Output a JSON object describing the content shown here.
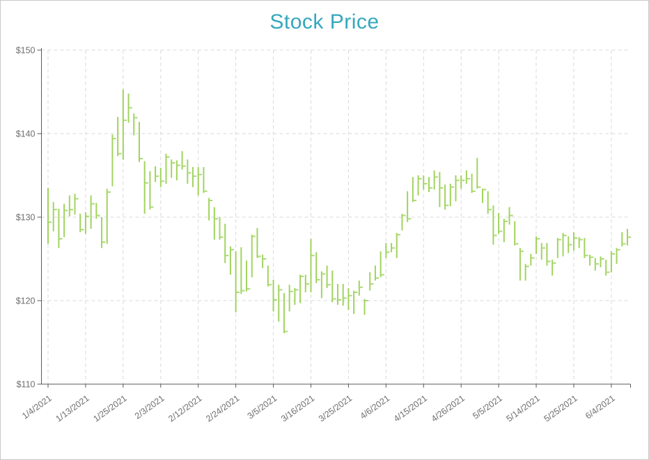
{
  "window": {
    "title": "Stock Price"
  },
  "chart_data": {
    "type": "hlc-bar",
    "title": "Stock Price",
    "legend": "none",
    "grid": "dashed",
    "y_axis": {
      "min": 110,
      "max": 150,
      "step": 10,
      "prefix": "$",
      "labels": [
        "$110",
        "$120",
        "$130",
        "$140",
        "$150"
      ]
    },
    "x_axis": {
      "ticks": [
        {
          "label": "1/4/2021",
          "index": 0
        },
        {
          "label": "1/13/2021",
          "index": 7
        },
        {
          "label": "1/25/2021",
          "index": 14
        },
        {
          "label": "2/3/2021",
          "index": 21
        },
        {
          "label": "2/12/2021",
          "index": 28
        },
        {
          "label": "2/24/2021",
          "index": 35
        },
        {
          "label": "3/5/2021",
          "index": 42
        },
        {
          "label": "3/16/2021",
          "index": 49
        },
        {
          "label": "3/25/2021",
          "index": 56
        },
        {
          "label": "4/6/2021",
          "index": 63
        },
        {
          "label": "4/15/2021",
          "index": 70
        },
        {
          "label": "4/26/2021",
          "index": 77
        },
        {
          "label": "5/5/2021",
          "index": 84
        },
        {
          "label": "5/14/2021",
          "index": 91
        },
        {
          "label": "5/25/2021",
          "index": 98
        },
        {
          "label": "6/4/2021",
          "index": 105
        }
      ]
    },
    "colors": {
      "bar": "#9cd156",
      "close_tick": "#abda74",
      "title": "#35a8bd",
      "axis": "#595959",
      "grid": "#d9d9d9",
      "tick_label": "#6e6e6e",
      "background": "#ffffff"
    },
    "point_format": [
      "date",
      "high",
      "low",
      "close"
    ],
    "series": [
      {
        "name": "Price",
        "points": [
          [
            "1/4/2021",
            133.5,
            126.8,
            129.4
          ],
          [
            "1/5/2021",
            131.8,
            128.3,
            130.9
          ],
          [
            "1/6/2021",
            131.0,
            126.3,
            127.4
          ],
          [
            "1/7/2021",
            131.6,
            127.6,
            130.8
          ],
          [
            "1/8/2021",
            132.6,
            130.1,
            130.9
          ],
          [
            "1/11/2021",
            132.8,
            130.3,
            132.2
          ],
          [
            "1/12/2021",
            130.4,
            128.2,
            128.5
          ],
          [
            "1/13/2021",
            130.6,
            128.0,
            130.1
          ],
          [
            "1/14/2021",
            132.6,
            128.6,
            131.6
          ],
          [
            "1/15/2021",
            131.7,
            129.8,
            130.2
          ],
          [
            "1/19/2021",
            130.0,
            126.3,
            127.0
          ],
          [
            "1/20/2021",
            133.4,
            126.8,
            133.0
          ],
          [
            "1/21/2021",
            139.9,
            133.7,
            139.4
          ],
          [
            "1/22/2021",
            142.0,
            137.3,
            137.6
          ],
          [
            "1/25/2021",
            145.3,
            136.9,
            141.6
          ],
          [
            "1/26/2021",
            144.8,
            141.3,
            143.1
          ],
          [
            "1/27/2021",
            142.4,
            139.8,
            141.9
          ],
          [
            "1/28/2021",
            141.4,
            136.6,
            137.0
          ],
          [
            "1/29/2021",
            136.7,
            130.4,
            134.1
          ],
          [
            "2/1/2021",
            135.5,
            130.9,
            131.2
          ],
          [
            "2/2/2021",
            136.1,
            134.2,
            134.9
          ],
          [
            "2/3/2021",
            135.9,
            133.6,
            134.3
          ],
          [
            "2/4/2021",
            137.6,
            134.0,
            137.2
          ],
          [
            "2/5/2021",
            136.9,
            134.7,
            136.5
          ],
          [
            "2/8/2021",
            136.8,
            134.4,
            136.2
          ],
          [
            "2/9/2021",
            137.9,
            135.7,
            136.1
          ],
          [
            "2/10/2021",
            136.9,
            134.0,
            135.3
          ],
          [
            "2/11/2021",
            136.0,
            133.6,
            134.9
          ],
          [
            "2/12/2021",
            136.0,
            132.6,
            135.1
          ],
          [
            "2/16/2021",
            136.0,
            132.9,
            133.1
          ],
          [
            "2/17/2021",
            132.3,
            129.6,
            132.0
          ],
          [
            "2/18/2021",
            131.2,
            127.3,
            129.8
          ],
          [
            "2/19/2021",
            130.0,
            127.3,
            127.6
          ],
          [
            "2/22/2021",
            129.2,
            124.5,
            125.4
          ],
          [
            "2/23/2021",
            126.5,
            123.1,
            126.1
          ],
          [
            "2/24/2021",
            125.9,
            118.6,
            121.0
          ],
          [
            "2/25/2021",
            126.4,
            120.8,
            121.2
          ],
          [
            "2/26/2021",
            124.8,
            121.1,
            121.4
          ],
          [
            "3/1/2021",
            127.9,
            122.8,
            127.7
          ],
          [
            "3/2/2021",
            128.7,
            125.1,
            125.3
          ],
          [
            "3/3/2021",
            125.5,
            123.9,
            125.0
          ],
          [
            "3/4/2021",
            124.2,
            121.7,
            121.9
          ],
          [
            "3/5/2021",
            122.5,
            118.7,
            120.1
          ],
          [
            "3/8/2021",
            121.9,
            117.5,
            121.3
          ],
          [
            "3/9/2021",
            120.9,
            116.1,
            116.3
          ],
          [
            "3/10/2021",
            121.9,
            118.7,
            121.1
          ],
          [
            "3/11/2021",
            121.5,
            119.5,
            121.3
          ],
          [
            "3/12/2021",
            123.1,
            119.7,
            122.9
          ],
          [
            "3/15/2021",
            123.1,
            121.0,
            122.0
          ],
          [
            "3/16/2021",
            127.4,
            121.0,
            125.4
          ],
          [
            "3/17/2021",
            125.8,
            122.1,
            122.5
          ],
          [
            "3/18/2021",
            123.5,
            120.3,
            123.2
          ],
          [
            "3/19/2021",
            124.2,
            121.5,
            121.9
          ],
          [
            "3/22/2021",
            123.6,
            119.8,
            120.2
          ],
          [
            "3/23/2021",
            122.0,
            119.5,
            120.1
          ],
          [
            "3/24/2021",
            122.0,
            119.4,
            120.3
          ],
          [
            "3/25/2021",
            121.5,
            118.9,
            120.6
          ],
          [
            "3/26/2021",
            121.2,
            118.4,
            121.0
          ],
          [
            "3/29/2021",
            122.4,
            120.6,
            121.6
          ],
          [
            "3/30/2021",
            120.2,
            118.3,
            120.0
          ],
          [
            "3/31/2021",
            123.4,
            121.2,
            122.0
          ],
          [
            "4/1/2021",
            124.2,
            122.4,
            122.7
          ],
          [
            "4/5/2021",
            125.9,
            122.8,
            123.1
          ],
          [
            "4/6/2021",
            126.9,
            125.1,
            125.8
          ],
          [
            "4/7/2021",
            126.9,
            125.8,
            126.3
          ],
          [
            "4/8/2021",
            128.1,
            125.1,
            127.9
          ],
          [
            "4/9/2021",
            130.4,
            128.4,
            130.2
          ],
          [
            "4/12/2021",
            133.1,
            129.4,
            129.8
          ],
          [
            "4/13/2021",
            134.8,
            131.8,
            132.0
          ],
          [
            "4/14/2021",
            135.0,
            132.6,
            134.6
          ],
          [
            "4/15/2021",
            135.0,
            133.3,
            134.0
          ],
          [
            "4/16/2021",
            134.8,
            133.0,
            133.5
          ],
          [
            "4/19/2021",
            135.6,
            133.3,
            134.8
          ],
          [
            "4/20/2021",
            135.4,
            131.2,
            133.5
          ],
          [
            "4/21/2021",
            133.9,
            130.9,
            131.4
          ],
          [
            "4/22/2021",
            134.0,
            131.3,
            133.6
          ],
          [
            "4/23/2021",
            135.0,
            131.9,
            134.4
          ],
          [
            "4/26/2021",
            135.0,
            133.4,
            134.4
          ],
          [
            "4/27/2021",
            135.6,
            134.0,
            134.6
          ],
          [
            "4/28/2021",
            135.2,
            132.9,
            133.1
          ],
          [
            "4/29/2021",
            137.1,
            133.4,
            133.6
          ],
          [
            "4/30/2021",
            133.4,
            131.7,
            133.3
          ],
          [
            "5/3/2021",
            133.1,
            130.4,
            130.9
          ],
          [
            "5/4/2021",
            131.4,
            126.7,
            127.8
          ],
          [
            "5/5/2021",
            130.5,
            128.0,
            128.3
          ],
          [
            "5/6/2021",
            129.8,
            127.0,
            129.5
          ],
          [
            "5/7/2021",
            131.2,
            129.1,
            130.2
          ],
          [
            "5/10/2021",
            129.5,
            126.6,
            126.8
          ],
          [
            "5/11/2021",
            126.3,
            122.4,
            125.9
          ],
          [
            "5/12/2021",
            124.4,
            122.4,
            124.1
          ],
          [
            "5/13/2021",
            125.6,
            124.2,
            125.1
          ],
          [
            "5/14/2021",
            127.7,
            125.6,
            127.4
          ],
          [
            "5/17/2021",
            126.9,
            124.9,
            126.3
          ],
          [
            "5/18/2021",
            126.9,
            124.2,
            124.7
          ],
          [
            "5/19/2021",
            124.9,
            123.0,
            124.5
          ],
          [
            "5/20/2021",
            127.5,
            125.1,
            127.3
          ],
          [
            "5/21/2021",
            128.1,
            125.3,
            127.8
          ],
          [
            "5/24/2021",
            127.7,
            125.7,
            126.7
          ],
          [
            "5/25/2021",
            128.2,
            126.0,
            127.5
          ],
          [
            "5/26/2021",
            127.6,
            126.3,
            127.3
          ],
          [
            "5/27/2021",
            127.5,
            125.1,
            125.4
          ],
          [
            "5/28/2021",
            125.5,
            124.2,
            125.2
          ],
          [
            "6/1/2021",
            125.1,
            123.6,
            124.4
          ],
          [
            "6/2/2021",
            125.3,
            124.0,
            125.0
          ],
          [
            "6/3/2021",
            124.9,
            123.0,
            123.4
          ],
          [
            "6/4/2021",
            125.9,
            123.4,
            125.6
          ],
          [
            "6/7/2021",
            126.3,
            124.4,
            126.1
          ],
          [
            "6/8/2021",
            128.2,
            126.5,
            126.8
          ],
          [
            "6/9/2021",
            128.6,
            126.6,
            127.6
          ]
        ]
      }
    ]
  }
}
